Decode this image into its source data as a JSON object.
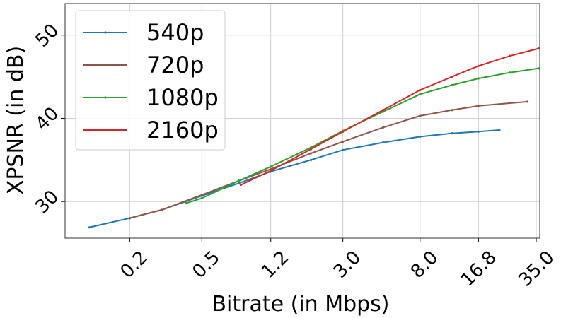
{
  "chart_data": {
    "type": "line",
    "xlabel": "Bitrate (in Mbps)",
    "ylabel": "XPSNR (in dB)",
    "xscale": "log",
    "grid": true,
    "legend": "upper left",
    "xlim": [
      0.088,
      36.6
    ],
    "ylim": [
      25.6,
      53.8
    ],
    "xticks": [
      0.2,
      0.5,
      1.2,
      {
        "value": 3,
        "label": "3.0"
      },
      {
        "value": 8,
        "label": "8.0"
      },
      16.8,
      {
        "value": 35,
        "label": "35.0"
      }
    ],
    "yticks": [
      30,
      40,
      50
    ],
    "series": [
      {
        "name": "540p",
        "color": "#1f77b4",
        "x": [
          0.12,
          0.2,
          0.3,
          0.5,
          0.8,
          1.2,
          2,
          3,
          5,
          8,
          12,
          16.8,
          21.9
        ],
        "values": [
          26.9,
          28.0,
          29.0,
          30.7,
          32.2,
          33.6,
          35.0,
          36.2,
          37.1,
          37.8,
          38.2,
          38.4,
          38.6
        ]
      },
      {
        "name": "720p",
        "color": "#8c564b",
        "x": [
          0.2,
          0.3,
          0.5,
          0.8,
          1.2,
          2,
          3,
          5,
          8,
          12,
          16.8,
          31.3
        ],
        "values": [
          28.0,
          29.0,
          30.8,
          32.5,
          33.9,
          35.8,
          37.2,
          38.9,
          40.3,
          41.0,
          41.5,
          42.0
        ]
      },
      {
        "name": "1080p",
        "color": "#2ca02c",
        "x": [
          0.41,
          0.5,
          0.8,
          1.2,
          2,
          3,
          5,
          8,
          12,
          16.8,
          25,
          36
        ],
        "values": [
          29.8,
          30.4,
          32.5,
          34.2,
          36.5,
          38.5,
          40.8,
          42.9,
          44.0,
          44.8,
          45.5,
          46.0
        ]
      },
      {
        "name": "2160p",
        "color": "#d62728",
        "x": [
          0.82,
          1.2,
          2,
          3,
          5,
          8,
          12,
          16.8,
          25,
          36
        ],
        "values": [
          32.0,
          33.7,
          36.3,
          38.4,
          41.0,
          43.4,
          45.0,
          46.3,
          47.5,
          48.4
        ]
      }
    ]
  }
}
